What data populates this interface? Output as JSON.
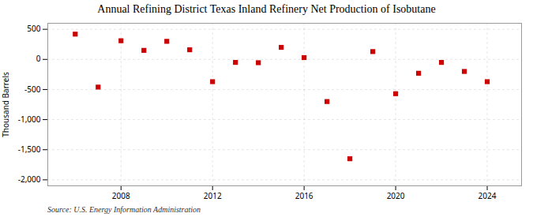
{
  "chart_data": {
    "type": "scatter",
    "title": "Annual Refining District Texas Inland Refinery Net Production of Isobutane",
    "y_label": "Thousand Barrels",
    "annotations": [
      "Source: U.S. Energy Information Administration"
    ],
    "x": [
      2006,
      2007,
      2008,
      2009,
      2010,
      2011,
      2012,
      2013,
      2014,
      2015,
      2016,
      2017,
      2018,
      2019,
      2020,
      2021,
      2022,
      2023,
      2024
    ],
    "values": [
      420,
      -460,
      310,
      150,
      300,
      160,
      -370,
      -50,
      -55,
      200,
      30,
      -700,
      -1650,
      130,
      -570,
      -230,
      -50,
      -200,
      -370
    ],
    "color": "#cc0000",
    "marker": "square",
    "xlim": [
      2004.8,
      2025.5
    ],
    "xticks": [
      2008,
      2012,
      2016,
      2020,
      2024
    ],
    "ylim": [
      -2100,
      600
    ],
    "yticks": [
      {
        "value": -2000,
        "label": "-2,000"
      },
      {
        "value": -1500,
        "label": "-1,500"
      },
      {
        "value": -1000,
        "label": "-1,000"
      },
      -500,
      0,
      500
    ],
    "grid": true
  }
}
